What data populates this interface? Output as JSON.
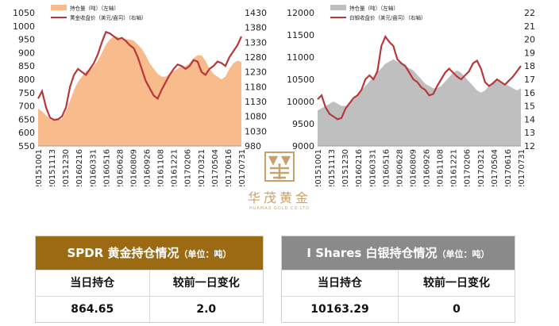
{
  "colors": {
    "gold_area": "#f7bb8c",
    "gold_line": "#b7383a",
    "silver_area": "#bfbfbf",
    "silver_line": "#b7383a",
    "gold_header": "#9b6a12",
    "silver_header": "#8a8a8a",
    "logo": "#c9a16b"
  },
  "chart_data": [
    {
      "type": "area+line",
      "legend": [
        "持仓量（吨）（左轴）",
        "黄金收盘价（美元/盎司）（右轴）"
      ],
      "x_ticks": [
        "20151001",
        "20151113",
        "20151230",
        "20160216",
        "20160331",
        "20160516",
        "20160628",
        "20160809",
        "20160926",
        "20161108",
        "20161221",
        "20170206",
        "20170321",
        "20170504",
        "20170616",
        "20170731"
      ],
      "ylim_left": [
        550,
        1050
      ],
      "yticks_left": [
        550,
        600,
        650,
        700,
        750,
        800,
        850,
        900,
        950,
        1000,
        1050
      ],
      "ylim_right": [
        980,
        1430
      ],
      "yticks_right": [
        980,
        1030,
        1080,
        1130,
        1180,
        1230,
        1280,
        1330,
        1380,
        1430
      ],
      "series": [
        {
          "name": "持仓量（吨）（左轴）",
          "axis": "left",
          "kind": "area",
          "values": [
            690,
            680,
            665,
            650,
            645,
            648,
            652,
            680,
            720,
            760,
            790,
            810,
            830,
            840,
            850,
            870,
            900,
            930,
            950,
            960,
            960,
            950,
            950,
            950,
            945,
            930,
            915,
            890,
            860,
            840,
            820,
            810,
            810,
            820,
            830,
            840,
            850,
            850,
            860,
            880,
            890,
            890,
            870,
            840,
            820,
            810,
            800,
            810,
            840,
            860,
            870,
            865
          ]
        },
        {
          "name": "黄金收盘价（美元/盎司）（右轴）",
          "axis": "right",
          "kind": "line",
          "values": [
            1140,
            1165,
            1110,
            1075,
            1068,
            1070,
            1080,
            1110,
            1180,
            1220,
            1240,
            1230,
            1220,
            1240,
            1260,
            1290,
            1330,
            1365,
            1360,
            1350,
            1340,
            1345,
            1335,
            1320,
            1310,
            1280,
            1240,
            1200,
            1175,
            1150,
            1140,
            1170,
            1195,
            1220,
            1240,
            1255,
            1250,
            1240,
            1250,
            1270,
            1265,
            1230,
            1220,
            1240,
            1250,
            1265,
            1260,
            1250,
            1280,
            1300,
            1320,
            1350
          ]
        }
      ]
    },
    {
      "type": "area+line",
      "legend": [
        "持仓量（吨）（左轴）",
        "白银收盘价（美元/盎司）（右轴）"
      ],
      "x_ticks": [
        "20151001",
        "20151113",
        "20151230",
        "20160216",
        "20160331",
        "20160516",
        "20160628",
        "20160809",
        "20160926",
        "20161108",
        "20161221",
        "20170206",
        "20170321",
        "20170504",
        "20170616",
        "20170731"
      ],
      "ylim_left": [
        9000,
        12000
      ],
      "yticks_left": [
        9000,
        9500,
        10000,
        10500,
        11000,
        11500,
        12000
      ],
      "ylim_right": [
        12,
        22
      ],
      "yticks_right": [
        12,
        13,
        14,
        15,
        16,
        17,
        18,
        19,
        20,
        21,
        22
      ],
      "series": [
        {
          "name": "持仓量（吨）（左轴）",
          "axis": "left",
          "kind": "area",
          "values": [
            9800,
            9850,
            9900,
            9950,
            10000,
            9950,
            9900,
            9900,
            9950,
            10050,
            10150,
            10250,
            10350,
            10450,
            10550,
            10650,
            10750,
            10850,
            10900,
            10950,
            10900,
            10850,
            10800,
            10750,
            10700,
            10600,
            10500,
            10400,
            10350,
            10300,
            10300,
            10350,
            10450,
            10550,
            10650,
            10700,
            10650,
            10550,
            10450,
            10350,
            10250,
            10200,
            10250,
            10350,
            10450,
            10500,
            10450,
            10400,
            10350,
            10300,
            10250,
            10300
          ]
        },
        {
          "name": "白银收盘价（美元/盎司）（右轴）",
          "axis": "right",
          "kind": "line",
          "values": [
            15.5,
            15.8,
            14.9,
            14.4,
            14.2,
            14.0,
            14.1,
            14.8,
            15.2,
            15.6,
            15.8,
            16.2,
            17.0,
            17.3,
            17.0,
            17.6,
            19.5,
            20.2,
            19.8,
            19.5,
            18.5,
            18.2,
            18.0,
            17.5,
            17.0,
            16.8,
            16.4,
            16.2,
            15.8,
            15.9,
            16.5,
            17.0,
            17.5,
            17.8,
            17.5,
            17.2,
            17.0,
            17.3,
            17.6,
            18.2,
            18.4,
            17.8,
            16.8,
            16.5,
            16.7,
            17.0,
            16.8,
            16.6,
            16.9,
            17.2,
            17.6,
            18.0
          ]
        }
      ]
    }
  ],
  "logo": {
    "name": "华茂黄金",
    "sub": "HUAMAO GOLD CO.LTD"
  },
  "gold_panel": {
    "title": "SPDR 黄金持仓情况",
    "unit": "（单位：吨）",
    "col1": "当日持仓",
    "col2": "较前一日变化",
    "val1": "864.65",
    "val2": "2.0"
  },
  "silver_panel": {
    "title": "I Shares 白银持仓情况",
    "unit": "（单位：吨）",
    "col1": "当日持仓",
    "col2": "较前一日变化",
    "val1": "10163.29",
    "val2": "0"
  }
}
